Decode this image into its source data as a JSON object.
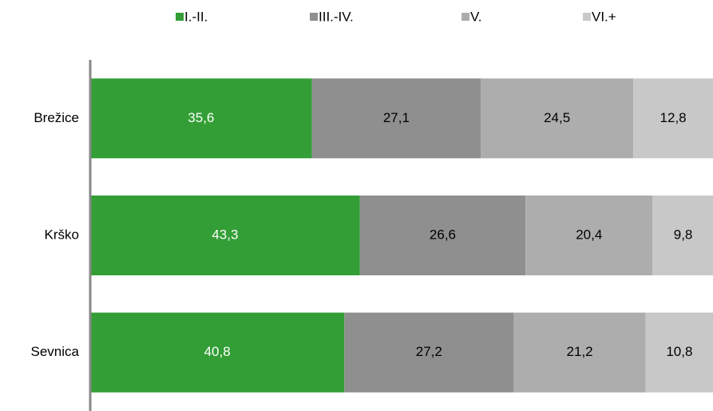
{
  "chart_data": {
    "type": "stacked_barh",
    "categories": [
      "Brežice",
      "Krško",
      "Sevnica"
    ],
    "xlim": [
      0,
      100
    ],
    "series": [
      {
        "name": "I.-II.",
        "color": "#339e35",
        "values": [
          35.6,
          43.3,
          40.8
        ],
        "value_labels": [
          "35,6",
          "43,3",
          "40,8"
        ]
      },
      {
        "name": "III.-IV.",
        "color": "#8f8f8f",
        "values": [
          27.1,
          26.6,
          27.2
        ],
        "value_labels": [
          "27,1",
          "26,6",
          "27,2"
        ]
      },
      {
        "name": "V.",
        "color": "#adadad",
        "values": [
          24.5,
          20.4,
          21.2
        ],
        "value_labels": [
          "24,5",
          "20,4",
          "21,2"
        ]
      },
      {
        "name": "VI.+",
        "color": "#c8c8c8",
        "values": [
          12.8,
          9.8,
          10.8
        ],
        "value_labels": [
          "12,8",
          "9,8",
          "10,8"
        ]
      }
    ]
  }
}
